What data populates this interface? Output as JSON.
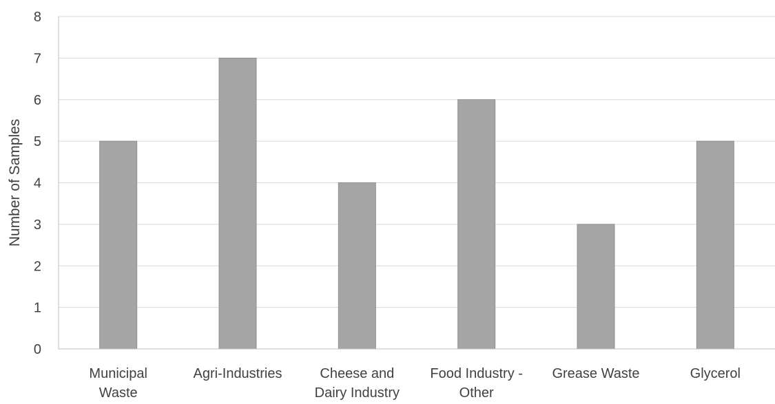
{
  "chart_data": {
    "type": "bar",
    "title": "",
    "xlabel": "",
    "ylabel": "Number of Samples",
    "categories": [
      [
        "Municipal",
        "Waste"
      ],
      [
        "Agri-Industries"
      ],
      [
        "Cheese and",
        "Dairy Industry"
      ],
      [
        "Food Industry -",
        "Other"
      ],
      [
        "Grease Waste"
      ],
      [
        "Glycerol"
      ]
    ],
    "values": [
      5,
      7,
      4,
      6,
      3,
      5
    ],
    "ylim": [
      0,
      8
    ],
    "yticks": [
      0,
      1,
      2,
      3,
      4,
      5,
      6,
      7,
      8
    ],
    "grid": true,
    "legend": "none",
    "colors": {
      "bar": "#a5a5a5",
      "bar_edge": "#8f8f8f",
      "grid": "#d9d9d9",
      "axis": "#bfbfbf",
      "text": "#404040"
    }
  }
}
